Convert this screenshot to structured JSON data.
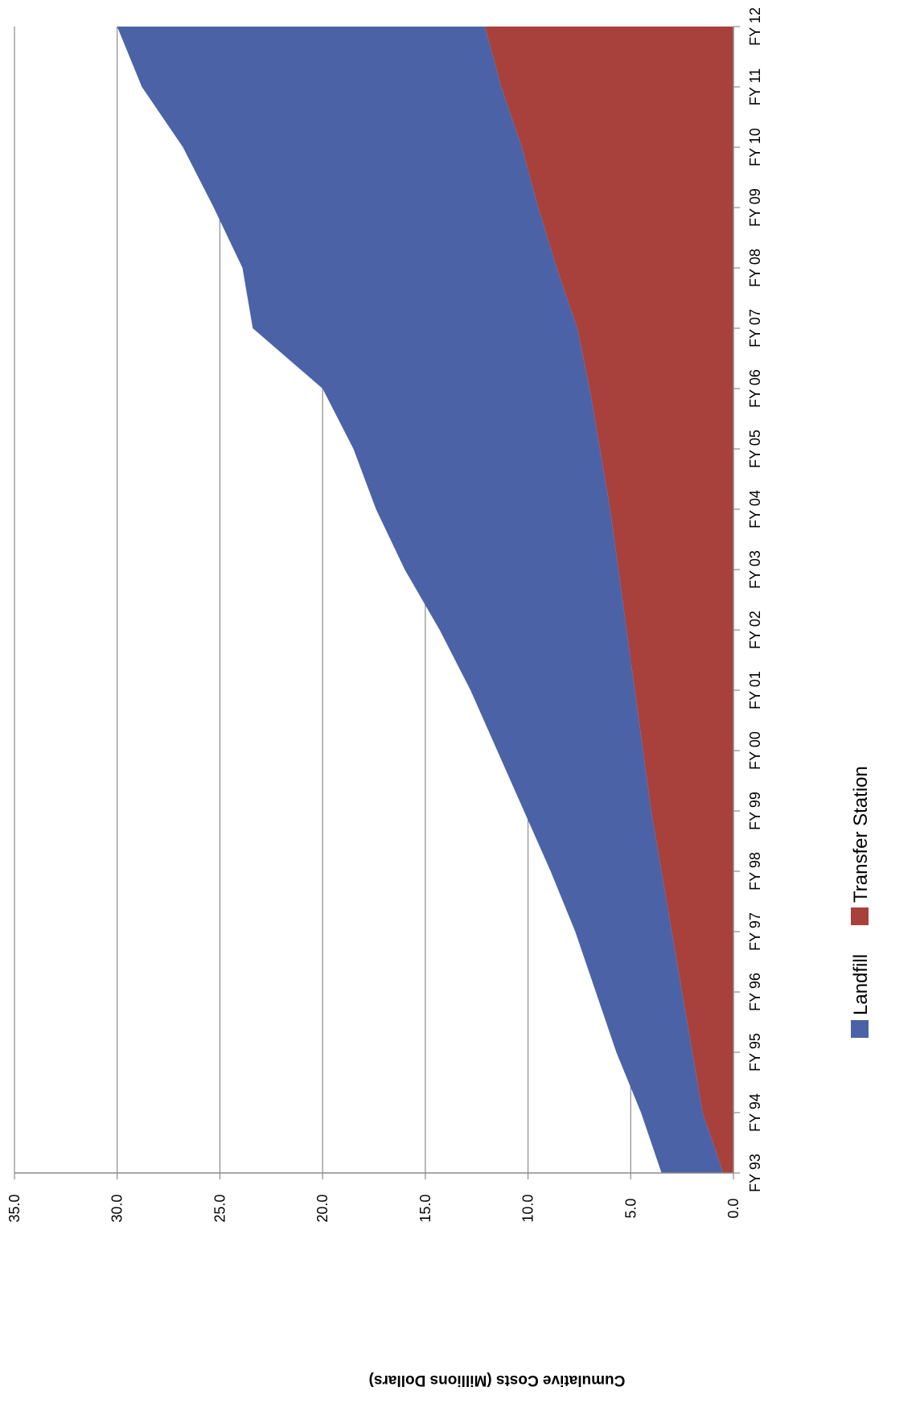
{
  "chart_data": {
    "type": "area",
    "stacked": true,
    "orientation": "rotated-90-clockwise",
    "title": "",
    "xlabel": "",
    "ylabel": "Cumulative Costs (Millions Dollars)",
    "categories": [
      "FY 93",
      "FY 94",
      "FY 95",
      "FY 96",
      "FY 97",
      "FY 98",
      "FY 99",
      "FY 00",
      "FY 01",
      "FY 02",
      "FY 03",
      "FY 04",
      "FY 05",
      "FY 06",
      "FY 07",
      "FY 08",
      "FY 09",
      "FY 10",
      "FY 11",
      "FY 12"
    ],
    "yticks": [
      "0.0",
      "5.0",
      "10.0",
      "15.0",
      "20.0",
      "25.0",
      "30.0",
      "35.0"
    ],
    "ylim": [
      0,
      35
    ],
    "grid": true,
    "legend_position": "bottom",
    "series": [
      {
        "name": "Transfer Station",
        "color": "#a8403c",
        "values": [
          0.5,
          1.5,
          2.0,
          2.5,
          3.0,
          3.5,
          4.0,
          4.4,
          4.8,
          5.2,
          5.6,
          6.0,
          6.5,
          7.0,
          7.6,
          8.6,
          9.5,
          10.3,
          11.3,
          12.1
        ]
      },
      {
        "name": "Landfill",
        "color": "#4b63a6",
        "values": [
          3.0,
          3.0,
          3.7,
          4.2,
          4.7,
          5.4,
          6.2,
          7.1,
          8.0,
          9.1,
          10.4,
          11.4,
          12.0,
          13.0,
          15.8,
          15.3,
          15.8,
          16.5,
          17.5,
          17.9
        ]
      }
    ]
  }
}
